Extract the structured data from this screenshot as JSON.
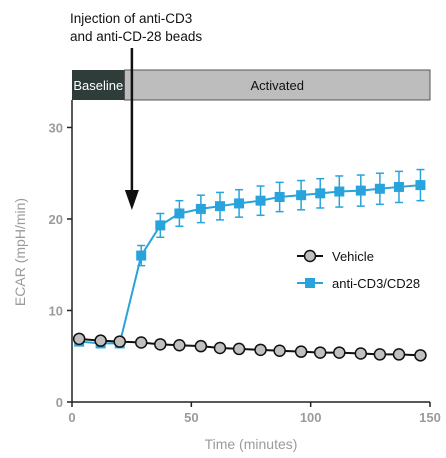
{
  "annotation": {
    "line1": "Injection of anti-CD3",
    "line2": "and anti-CD-28 beads"
  },
  "phases": {
    "baseline": "Baseline",
    "activated": "Activated",
    "baseline_range": [
      0,
      22
    ],
    "activated_range": [
      22,
      150
    ],
    "baseline_color": "#2e3d3a",
    "activated_color": "#bdbdbd"
  },
  "chart_data": {
    "type": "line",
    "title": "",
    "xlabel": "Time (minutes)",
    "ylabel": "ECAR (mpH/min)",
    "xlim": [
      0,
      150
    ],
    "ylim": [
      0,
      33
    ],
    "xticks": [
      0,
      50,
      100,
      150
    ],
    "yticks": [
      0,
      10,
      20,
      30
    ],
    "grid": false,
    "legend_position": "center-right",
    "annotation_arrow_x": 23,
    "series": [
      {
        "name": "Vehicle",
        "color": "#c0c0c0",
        "marker": "circle",
        "x": [
          3,
          12,
          20,
          29,
          37,
          45,
          54,
          62,
          70,
          79,
          87,
          96,
          104,
          112,
          121,
          129,
          137,
          146
        ],
        "y": [
          6.9,
          6.7,
          6.6,
          6.5,
          6.3,
          6.2,
          6.1,
          5.9,
          5.8,
          5.7,
          5.6,
          5.5,
          5.4,
          5.4,
          5.3,
          5.2,
          5.2,
          5.1
        ],
        "error": [
          0.4,
          0.4,
          0.4,
          0.4,
          0.4,
          0.4,
          0.4,
          0.4,
          0.4,
          0.4,
          0.4,
          0.4,
          0.4,
          0.4,
          0.4,
          0.4,
          0.4,
          0.4
        ]
      },
      {
        "name": "anti-CD3/CD28",
        "color": "#29a3dc",
        "marker": "square",
        "x": [
          3,
          12,
          20,
          29,
          37,
          45,
          54,
          62,
          70,
          79,
          87,
          96,
          104,
          112,
          121,
          129,
          137,
          146
        ],
        "y": [
          6.6,
          6.4,
          6.4,
          16.0,
          19.3,
          20.6,
          21.1,
          21.4,
          21.7,
          22.0,
          22.4,
          22.6,
          22.8,
          23.0,
          23.1,
          23.3,
          23.5,
          23.7
        ],
        "error": [
          0.4,
          0.4,
          0.4,
          1.1,
          1.3,
          1.4,
          1.5,
          1.5,
          1.5,
          1.6,
          1.6,
          1.6,
          1.6,
          1.7,
          1.7,
          1.7,
          1.7,
          1.7
        ]
      }
    ]
  }
}
